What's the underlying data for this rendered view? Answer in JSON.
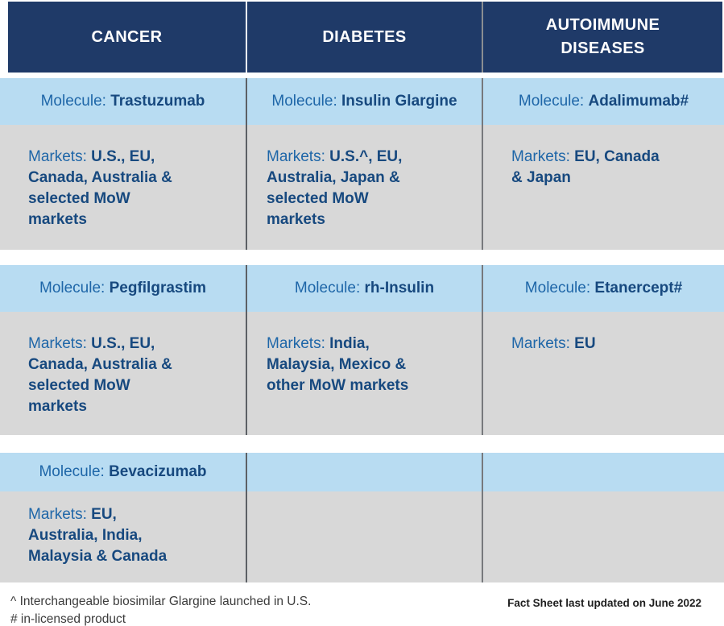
{
  "colors": {
    "header_navy": "#1F3A68",
    "molecule_row_blue": "#B8DCF2",
    "markets_row_gray": "#D8D8D8",
    "label_blue": "#1E66A8",
    "value_dark_blue": "#17497F",
    "header_text": "#FFFFFF"
  },
  "header": {
    "columns": [
      {
        "label": "CANCER"
      },
      {
        "label": "DIABETES"
      },
      {
        "label": "AUTOIMMUNE\nDISEASES"
      }
    ]
  },
  "labels": {
    "molecule": "Molecule:",
    "markets": "Markets:"
  },
  "groups": [
    {
      "molecules": [
        {
          "name": "Trastuzumab"
        },
        {
          "name": "Insulin Glargine"
        },
        {
          "name": "Adalimumab#"
        }
      ],
      "markets": [
        {
          "value": "U.S., EU,\nCanada, Australia &\nselected MoW\nmarkets"
        },
        {
          "value": "U.S.^, EU,\nAustralia, Japan &\nselected MoW\nmarkets"
        },
        {
          "value": "EU, Canada\n& Japan"
        }
      ]
    },
    {
      "molecules": [
        {
          "name": "Pegfilgrastim"
        },
        {
          "name": "rh-Insulin"
        },
        {
          "name": "Etanercept#"
        }
      ],
      "markets": [
        {
          "value": "U.S., EU,\nCanada, Australia &\nselected MoW\nmarkets"
        },
        {
          "value": "India,\nMalaysia, Mexico &\nother MoW markets"
        },
        {
          "value": "EU"
        }
      ]
    },
    {
      "molecules": [
        {
          "name": "Bevacizumab"
        }
      ],
      "markets": [
        {
          "value": "EU,\nAustralia, India,\nMalaysia & Canada"
        }
      ]
    }
  ],
  "footer": {
    "footnote_caret": "^ Interchangeable biosimilar Glargine launched in U.S.",
    "footnote_hash": "# in-licensed product",
    "updated": "Fact Sheet last updated on June 2022"
  }
}
